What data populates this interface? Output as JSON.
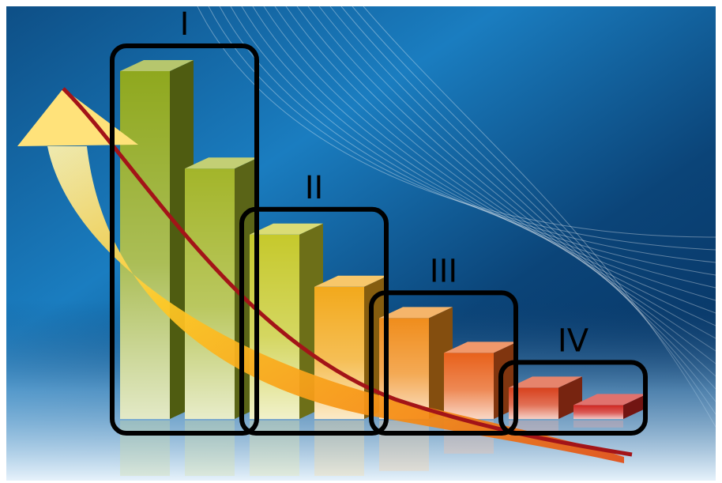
{
  "chart_data": {
    "type": "bar",
    "style": "3d-bars-declining-with-trend-arrow",
    "title": "",
    "xlabel": "",
    "ylabel": "",
    "grid": false,
    "legend": "none",
    "values": [
      10,
      7.2,
      5.3,
      3.8,
      2.9,
      1.9,
      0.9,
      0.4
    ],
    "colors": [
      "#8fa81e",
      "#a3b52a",
      "#c6c92c",
      "#f2a91c",
      "#f08d1c",
      "#e8611b",
      "#d8411d",
      "#cf2620"
    ],
    "groups": [
      {
        "label": "I",
        "bars": [
          0,
          1
        ]
      },
      {
        "label": "II",
        "bars": [
          2,
          3
        ]
      },
      {
        "label": "III",
        "bars": [
          4,
          5
        ]
      },
      {
        "label": "IV",
        "bars": [
          6,
          7
        ]
      }
    ],
    "trend_arrow": {
      "direction": "decreasing",
      "colors": [
        "#ffe27a",
        "#f9a11b",
        "#e8551a"
      ]
    },
    "background_colors": [
      "#1f9ad6",
      "#0d4f86",
      "#0a3566",
      "#b9d8ee"
    ]
  }
}
